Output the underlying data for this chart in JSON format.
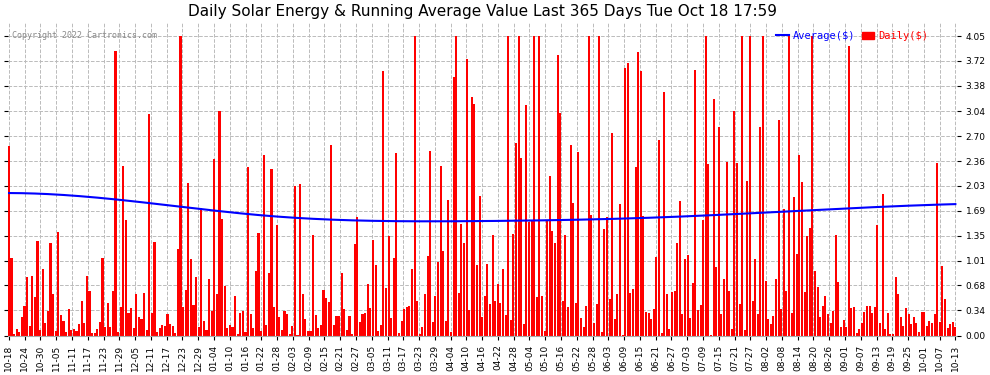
{
  "title": "Daily Solar Energy & Running Average Value Last 365 Days Tue Oct 18 17:59",
  "copyright": "Copyright 2022 Cartronics.com",
  "legend_avg": "Average($)",
  "legend_daily": "Daily($)",
  "bar_color": "#ff0000",
  "avg_color": "#0000ff",
  "background_color": "#ffffff",
  "plot_bg_color": "#ffffff",
  "grid_color": "#bbbbbb",
  "yticks": [
    0.0,
    0.34,
    0.68,
    1.01,
    1.35,
    1.69,
    2.03,
    2.36,
    2.7,
    3.04,
    3.38,
    3.72,
    4.05
  ],
  "ylim": [
    0,
    4.25
  ],
  "figsize": [
    9.9,
    3.75
  ],
  "title_fontsize": 11,
  "tick_fontsize": 6.5,
  "avg_linewidth": 1.5,
  "avg_shape_x": [
    0,
    30,
    100,
    180,
    250,
    310,
    364
  ],
  "avg_shape_y": [
    1.93,
    1.88,
    1.62,
    1.55,
    1.6,
    1.7,
    1.78
  ],
  "xtick_labels": [
    "10-18",
    "10-24",
    "10-30",
    "11-05",
    "11-11",
    "11-17",
    "11-23",
    "11-29",
    "12-05",
    "12-11",
    "12-17",
    "12-23",
    "12-29",
    "01-04",
    "01-10",
    "01-16",
    "01-22",
    "01-28",
    "02-03",
    "02-09",
    "02-15",
    "02-21",
    "02-27",
    "03-05",
    "03-11",
    "03-17",
    "03-23",
    "03-29",
    "04-04",
    "04-10",
    "04-16",
    "04-22",
    "04-28",
    "05-04",
    "05-10",
    "05-16",
    "05-22",
    "05-28",
    "06-03",
    "06-09",
    "06-15",
    "06-21",
    "06-27",
    "07-03",
    "07-09",
    "07-15",
    "07-21",
    "07-27",
    "08-02",
    "08-08",
    "08-14",
    "08-20",
    "08-26",
    "09-01",
    "09-07",
    "09-13",
    "09-19",
    "09-25",
    "10-01",
    "10-07",
    "10-13"
  ]
}
